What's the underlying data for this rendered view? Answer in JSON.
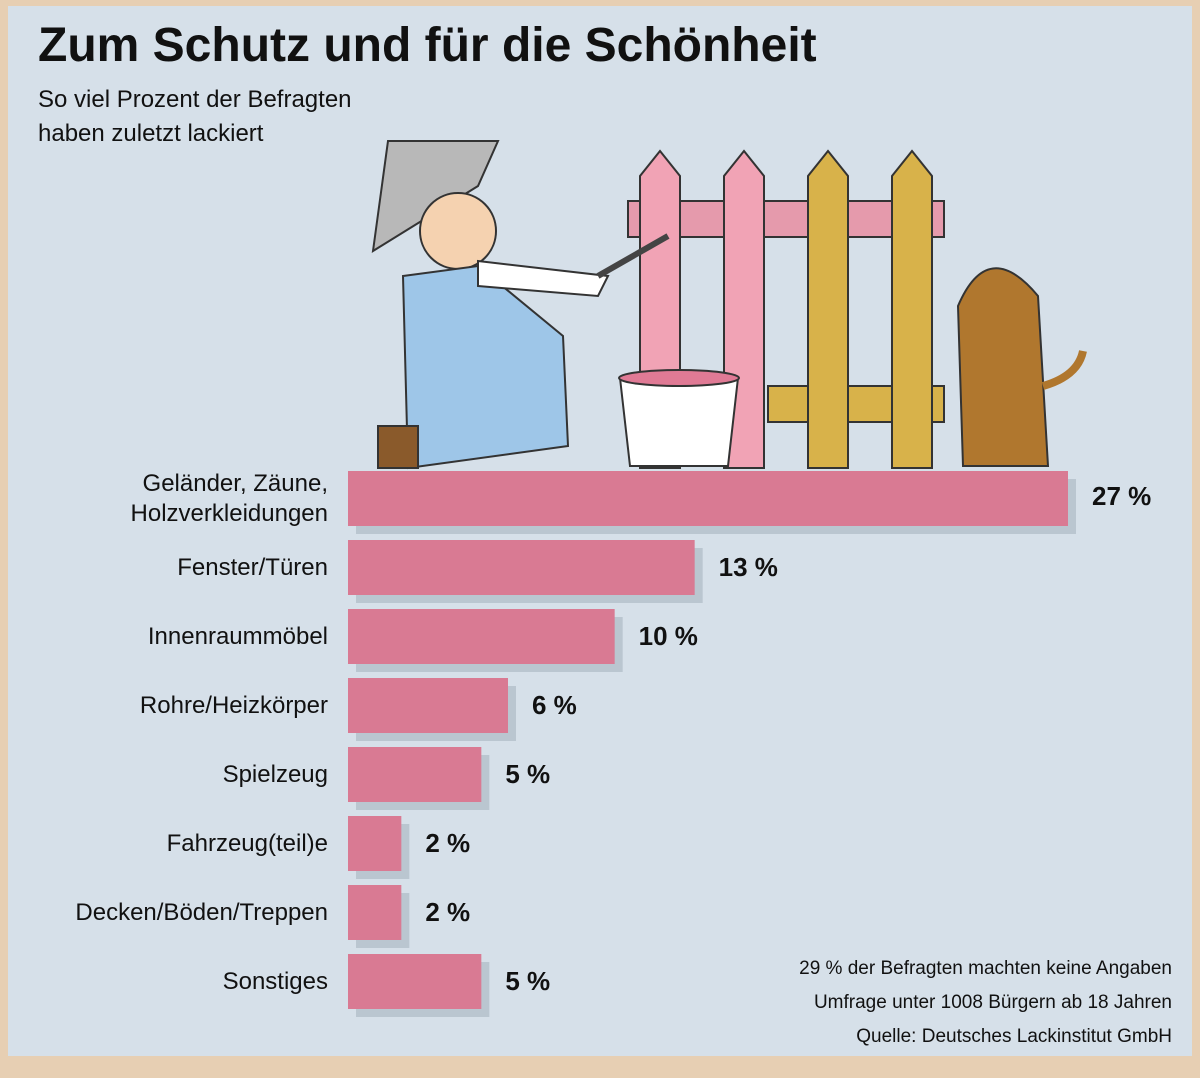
{
  "chart_data": {
    "type": "bar",
    "title": "Zum Schutz und für die Schönheit",
    "subtitle": [
      "So viel Prozent der Befragten",
      "haben zuletzt lackiert"
    ],
    "categories": [
      "Geländer, Zäune, Holzverkleidungen",
      "Fenster/Türen",
      "Innenraummöbel",
      "Rohre/Heizkörper",
      "Spielzeug",
      "Fahrzeug(teil)e",
      "Decken/Böden/Treppen",
      "Sonstiges"
    ],
    "values": [
      27,
      13,
      10,
      6,
      5,
      2,
      2,
      5
    ],
    "value_labels": [
      "27 %",
      "13 %",
      "10 %",
      "6 %",
      "5 %",
      "2 %",
      "2 %",
      "5 %"
    ],
    "color": "#d97a93",
    "notes": [
      "29 % der Befragten machten keine Angaben",
      "Umfrage unter 1008 Bürgern ab 18 Jahren",
      "Quelle: Deutsches Lackinstitut GmbH"
    ]
  }
}
